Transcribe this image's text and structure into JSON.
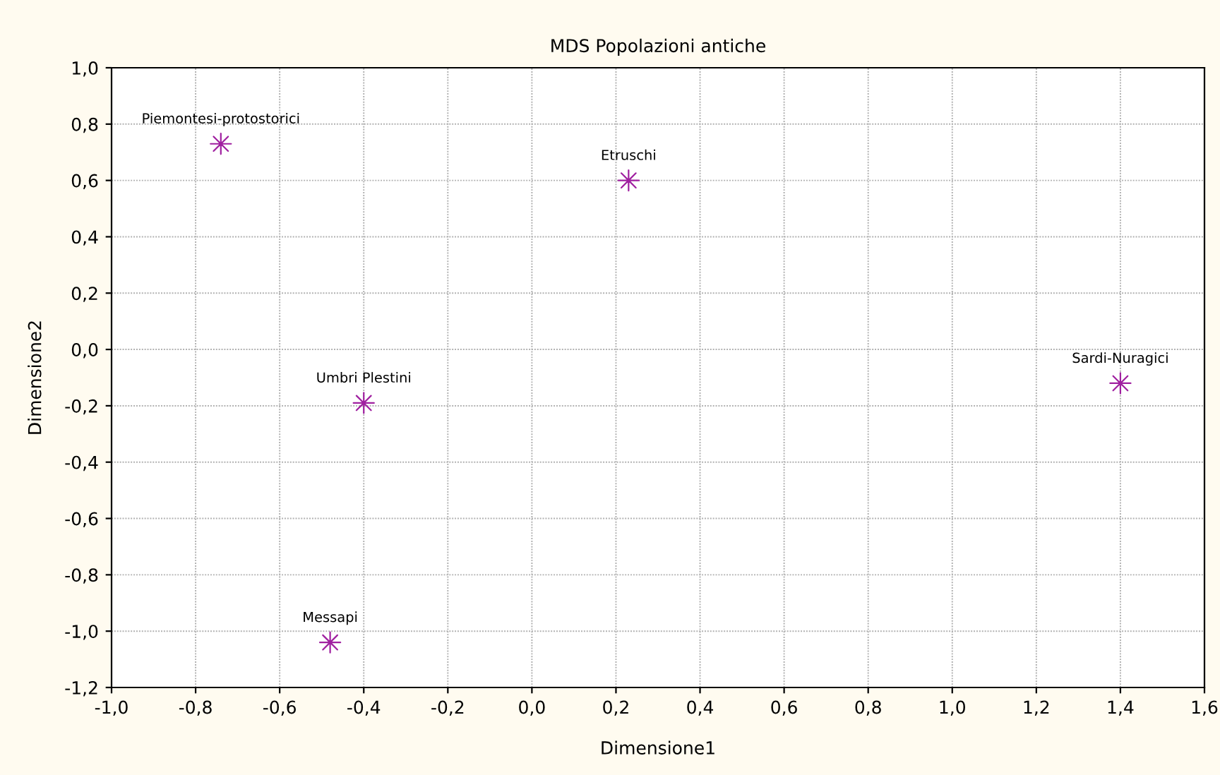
{
  "chart_data": {
    "type": "scatter",
    "title": "MDS Popolazioni antiche",
    "xlabel": "Dimensione1",
    "ylabel": "Dimensione2",
    "x": [
      -0.74,
      0.23,
      -0.4,
      -0.48,
      1.4
    ],
    "values": [
      0.73,
      0.6,
      -0.19,
      -1.04,
      -0.12
    ],
    "color": "#a020a0",
    "marker": "star",
    "grid": true,
    "xlim": [
      -1.0,
      1.6
    ],
    "xticks": [
      {
        "value": -1.0,
        "label": "-1,0"
      },
      {
        "value": -0.8,
        "label": "-0,8"
      },
      {
        "value": -0.6,
        "label": "-0,6"
      },
      {
        "value": -0.4,
        "label": "-0,4"
      },
      {
        "value": -0.2,
        "label": "-0,2"
      },
      {
        "value": 0.0,
        "label": "0,0"
      },
      {
        "value": 0.2,
        "label": "0,2"
      },
      {
        "value": 0.4,
        "label": "0,4"
      },
      {
        "value": 0.6,
        "label": "0,6"
      },
      {
        "value": 0.8,
        "label": "0,8"
      },
      {
        "value": 1.0,
        "label": "1,0"
      },
      {
        "value": 1.2,
        "label": "1,2"
      },
      {
        "value": 1.4,
        "label": "1,4"
      },
      {
        "value": 1.6,
        "label": "1,6"
      }
    ],
    "ylim": [
      -1.2,
      1.0
    ],
    "yticks": [
      {
        "value": -1.2,
        "label": "-1,2"
      },
      {
        "value": -1.0,
        "label": "-1,0"
      },
      {
        "value": -0.8,
        "label": "-0,8"
      },
      {
        "value": -0.6,
        "label": "-0,6"
      },
      {
        "value": -0.4,
        "label": "-0,4"
      },
      {
        "value": -0.2,
        "label": "-0,2"
      },
      {
        "value": 0.0,
        "label": "0,0"
      },
      {
        "value": 0.2,
        "label": "0,2"
      },
      {
        "value": 0.4,
        "label": "0,4"
      },
      {
        "value": 0.6,
        "label": "0,6"
      },
      {
        "value": 0.8,
        "label": "0,8"
      },
      {
        "value": 1.0,
        "label": "1,0"
      }
    ],
    "annotations": [
      {
        "text": "Piemontesi-protostorici",
        "x": -0.74,
        "y": 0.73
      },
      {
        "text": "Etruschi",
        "x": 0.23,
        "y": 0.6
      },
      {
        "text": "Umbri Plestini",
        "x": -0.4,
        "y": -0.19
      },
      {
        "text": "Messapi",
        "x": -0.48,
        "y": -1.04
      },
      {
        "text": "Sardi-Nuragici",
        "x": 1.4,
        "y": -0.12
      }
    ]
  }
}
